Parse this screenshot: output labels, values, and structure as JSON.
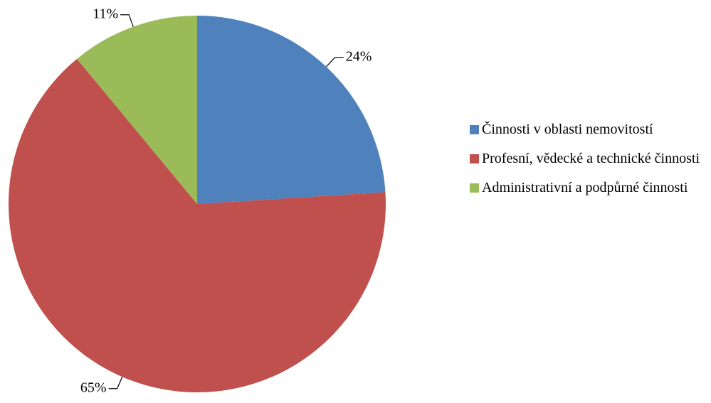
{
  "chart_data": {
    "type": "pie",
    "series": [
      {
        "name": "Činnosti v oblasti nemovitostí",
        "color": "#4f81bd"
      },
      {
        "name": "Profesní, vědecké a technické činnosti",
        "color": "#c0504d"
      },
      {
        "name": "Administrativní a podpůrné činnosti",
        "color": "#9bbb59"
      }
    ],
    "values": [
      24,
      65,
      11
    ],
    "value_labels": [
      "24%",
      "65%",
      "11%"
    ],
    "legend": "right"
  }
}
